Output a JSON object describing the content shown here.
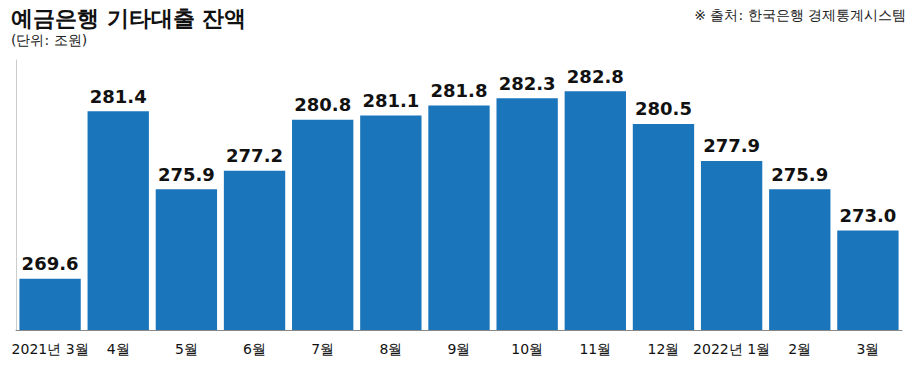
{
  "chart_data": {
    "type": "bar",
    "title": "예금은행 기타대출 잔액",
    "subtitle": "(단위: 조원)",
    "annotations": [
      "※ 출처: 한국은행 경제통계시스템"
    ],
    "categories": [
      "2021년 3월",
      "4월",
      "5월",
      "6월",
      "7월",
      "8월",
      "9월",
      "10월",
      "11월",
      "12월",
      "2022년 1월",
      "2월",
      "3월"
    ],
    "values": [
      269.6,
      281.4,
      275.9,
      277.2,
      280.8,
      281.1,
      281.8,
      282.3,
      282.8,
      280.5,
      277.9,
      275.9,
      273.0
    ],
    "value_labels": [
      "269.6",
      "281.4",
      "275.9",
      "277.2",
      "280.8",
      "281.1",
      "281.8",
      "282.3",
      "282.8",
      "280.5",
      "277.9",
      "275.9",
      "273.0"
    ],
    "color": "#1b75bb",
    "ylim": [
      266,
      285
    ],
    "yticks": [],
    "grid": false,
    "data_labels": true,
    "tick_labels": "x"
  }
}
